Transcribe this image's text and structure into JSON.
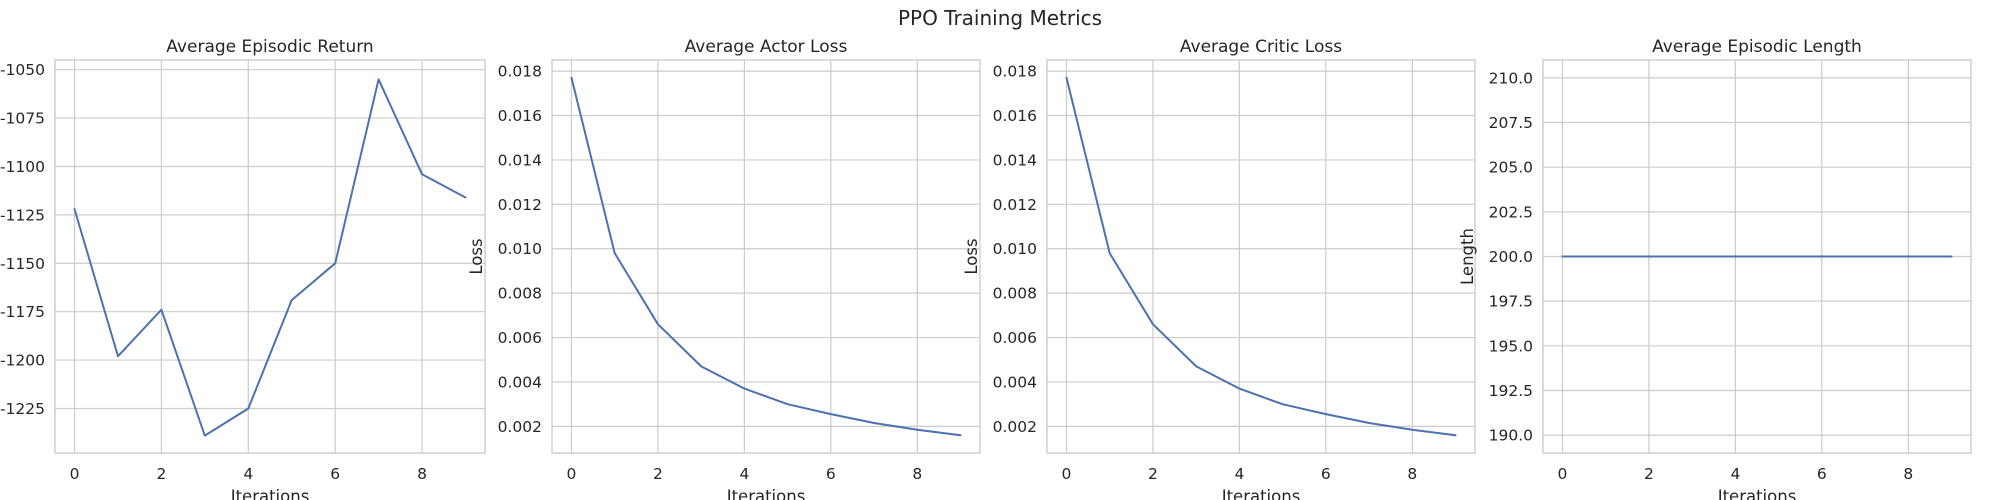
{
  "figure": {
    "title": "PPO Training Metrics"
  },
  "colors": {
    "line": "#4c72b0",
    "grid": "#cccccc",
    "text": "#262626"
  },
  "chart_data": [
    {
      "type": "line",
      "title": "Average Episodic Return",
      "xlabel": "Iterations",
      "ylabel": "",
      "x": [
        0,
        1,
        2,
        3,
        4,
        5,
        6,
        7,
        8,
        9
      ],
      "series": [
        {
          "values": [
            -1122,
            -1198,
            -1174,
            -1239,
            -1225,
            -1169,
            -1150,
            -1055,
            -1104,
            -1116
          ]
        }
      ],
      "xticks": [
        0,
        2,
        4,
        6,
        8
      ],
      "yticks": [
        -1225,
        -1200,
        -1175,
        -1150,
        -1125,
        -1100,
        -1075,
        -1050
      ],
      "xlim": [
        -0.45,
        9.45
      ],
      "ylim": [
        -1248,
        -1045
      ],
      "grid": true
    },
    {
      "type": "line",
      "title": "Average Actor Loss",
      "xlabel": "Iterations",
      "ylabel": "Loss",
      "x": [
        0,
        1,
        2,
        3,
        4,
        5,
        6,
        7,
        8,
        9
      ],
      "series": [
        {
          "values": [
            0.0177,
            0.0098,
            0.0066,
            0.0047,
            0.0037,
            0.003,
            0.00255,
            0.00215,
            0.00185,
            0.0016
          ]
        }
      ],
      "xticks": [
        0,
        2,
        4,
        6,
        8
      ],
      "yticks": [
        "0.002",
        "0.004",
        "0.006",
        "0.008",
        "0.010",
        "0.012",
        "0.014",
        "0.016",
        "0.018"
      ],
      "xlim": [
        -0.45,
        9.45
      ],
      "ylim": [
        0.0008,
        0.0185
      ],
      "grid": true
    },
    {
      "type": "line",
      "title": "Average Critic Loss",
      "xlabel": "Iterations",
      "ylabel": "Loss",
      "x": [
        0,
        1,
        2,
        3,
        4,
        5,
        6,
        7,
        8,
        9
      ],
      "series": [
        {
          "values": [
            0.0177,
            0.0098,
            0.0066,
            0.0047,
            0.0037,
            0.003,
            0.00255,
            0.00215,
            0.00185,
            0.0016
          ]
        }
      ],
      "xticks": [
        0,
        2,
        4,
        6,
        8
      ],
      "yticks": [
        "0.002",
        "0.004",
        "0.006",
        "0.008",
        "0.010",
        "0.012",
        "0.014",
        "0.016",
        "0.018"
      ],
      "xlim": [
        -0.45,
        9.45
      ],
      "ylim": [
        0.0008,
        0.0185
      ],
      "grid": true
    },
    {
      "type": "line",
      "title": "Average Episodic Length",
      "xlabel": "Iterations",
      "ylabel": "Length",
      "x": [
        0,
        1,
        2,
        3,
        4,
        5,
        6,
        7,
        8,
        9
      ],
      "series": [
        {
          "values": [
            200,
            200,
            200,
            200,
            200,
            200,
            200,
            200,
            200,
            200
          ]
        }
      ],
      "xticks": [
        0,
        2,
        4,
        6,
        8
      ],
      "yticks": [
        "190.0",
        "192.5",
        "195.0",
        "197.5",
        "200.0",
        "202.5",
        "205.0",
        "207.5",
        "210.0"
      ],
      "xlim": [
        -0.45,
        9.45
      ],
      "ylim": [
        189,
        211
      ],
      "grid": true
    }
  ]
}
